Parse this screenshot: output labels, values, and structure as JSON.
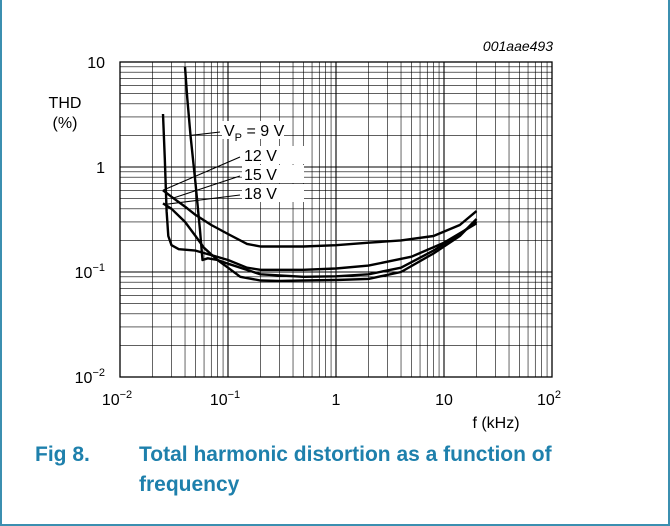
{
  "colors": {
    "frame": "#3b8fb0",
    "caption": "#1e80ac",
    "curve": "#000000",
    "grid": "#000000"
  },
  "figure": {
    "code": "001aae493",
    "caption_number": "Fig 8.",
    "caption_text": "Total harmonic distortion as a function of frequency"
  },
  "chart_data": {
    "type": "line",
    "scale": "log-log",
    "grid": true,
    "xlabel": "f (kHz)",
    "ylabel_line1": "THD",
    "ylabel_line2": "(%)",
    "xlim": [
      0.01,
      100
    ],
    "ylim": [
      0.01,
      10
    ],
    "x_ticks": [
      {
        "value": 0.01,
        "base": "10",
        "exp": "−2"
      },
      {
        "value": 0.1,
        "base": "10",
        "exp": "−1"
      },
      {
        "value": 1,
        "base": "1",
        "exp": ""
      },
      {
        "value": 10,
        "base": "10",
        "exp": ""
      },
      {
        "value": 100,
        "base": "10",
        "exp": "2"
      }
    ],
    "y_ticks": [
      {
        "value": 0.01,
        "base": "10",
        "exp": "−2"
      },
      {
        "value": 0.1,
        "base": "10",
        "exp": "−1"
      },
      {
        "value": 1,
        "base": "1",
        "exp": ""
      },
      {
        "value": 10,
        "base": "10",
        "exp": ""
      }
    ],
    "series": [
      {
        "name": "VP = 9 V",
        "label_main": "V",
        "label_sub": "P",
        "label_rest": " = 9 V",
        "points": [
          [
            0.04,
            9.0
          ],
          [
            0.042,
            4.5
          ],
          [
            0.045,
            2.0
          ],
          [
            0.05,
            0.7
          ],
          [
            0.055,
            0.25
          ],
          [
            0.058,
            0.13
          ],
          [
            0.065,
            0.135
          ],
          [
            0.08,
            0.13
          ],
          [
            0.1,
            0.12
          ],
          [
            0.2,
            0.095
          ],
          [
            0.5,
            0.09
          ],
          [
            1,
            0.091
          ],
          [
            2,
            0.095
          ],
          [
            4,
            0.11
          ],
          [
            8,
            0.16
          ],
          [
            14,
            0.23
          ],
          [
            20,
            0.3
          ]
        ]
      },
      {
        "name": "12 V",
        "label_main": "12 V",
        "label_sub": "",
        "label_rest": "",
        "points": [
          [
            0.025,
            3.2
          ],
          [
            0.026,
            1.2
          ],
          [
            0.027,
            0.38
          ],
          [
            0.028,
            0.22
          ],
          [
            0.03,
            0.18
          ],
          [
            0.035,
            0.165
          ],
          [
            0.05,
            0.16
          ],
          [
            0.07,
            0.145
          ],
          [
            0.1,
            0.13
          ],
          [
            0.15,
            0.11
          ],
          [
            0.2,
            0.105
          ],
          [
            0.5,
            0.105
          ],
          [
            1,
            0.108
          ],
          [
            2,
            0.115
          ],
          [
            5,
            0.14
          ],
          [
            10,
            0.19
          ],
          [
            20,
            0.29
          ]
        ]
      },
      {
        "name": "15 V",
        "label_main": "15 V",
        "label_sub": "",
        "label_rest": "",
        "points": [
          [
            0.025,
            0.6
          ],
          [
            0.03,
            0.52
          ],
          [
            0.04,
            0.42
          ],
          [
            0.05,
            0.35
          ],
          [
            0.07,
            0.28
          ],
          [
            0.1,
            0.23
          ],
          [
            0.15,
            0.185
          ],
          [
            0.2,
            0.175
          ],
          [
            0.5,
            0.175
          ],
          [
            1,
            0.18
          ],
          [
            2,
            0.19
          ],
          [
            4,
            0.2
          ],
          [
            8,
            0.22
          ],
          [
            14,
            0.28
          ],
          [
            20,
            0.38
          ]
        ]
      },
      {
        "name": "18 V",
        "label_main": "18 V",
        "label_sub": "",
        "label_rest": "",
        "points": [
          [
            0.025,
            0.45
          ],
          [
            0.03,
            0.4
          ],
          [
            0.04,
            0.3
          ],
          [
            0.05,
            0.22
          ],
          [
            0.06,
            0.17
          ],
          [
            0.08,
            0.13
          ],
          [
            0.1,
            0.11
          ],
          [
            0.13,
            0.09
          ],
          [
            0.2,
            0.083
          ],
          [
            0.3,
            0.082
          ],
          [
            0.5,
            0.083
          ],
          [
            1,
            0.084
          ],
          [
            2,
            0.086
          ],
          [
            4,
            0.1
          ],
          [
            8,
            0.15
          ],
          [
            14,
            0.22
          ],
          [
            20,
            0.32
          ]
        ]
      }
    ]
  }
}
